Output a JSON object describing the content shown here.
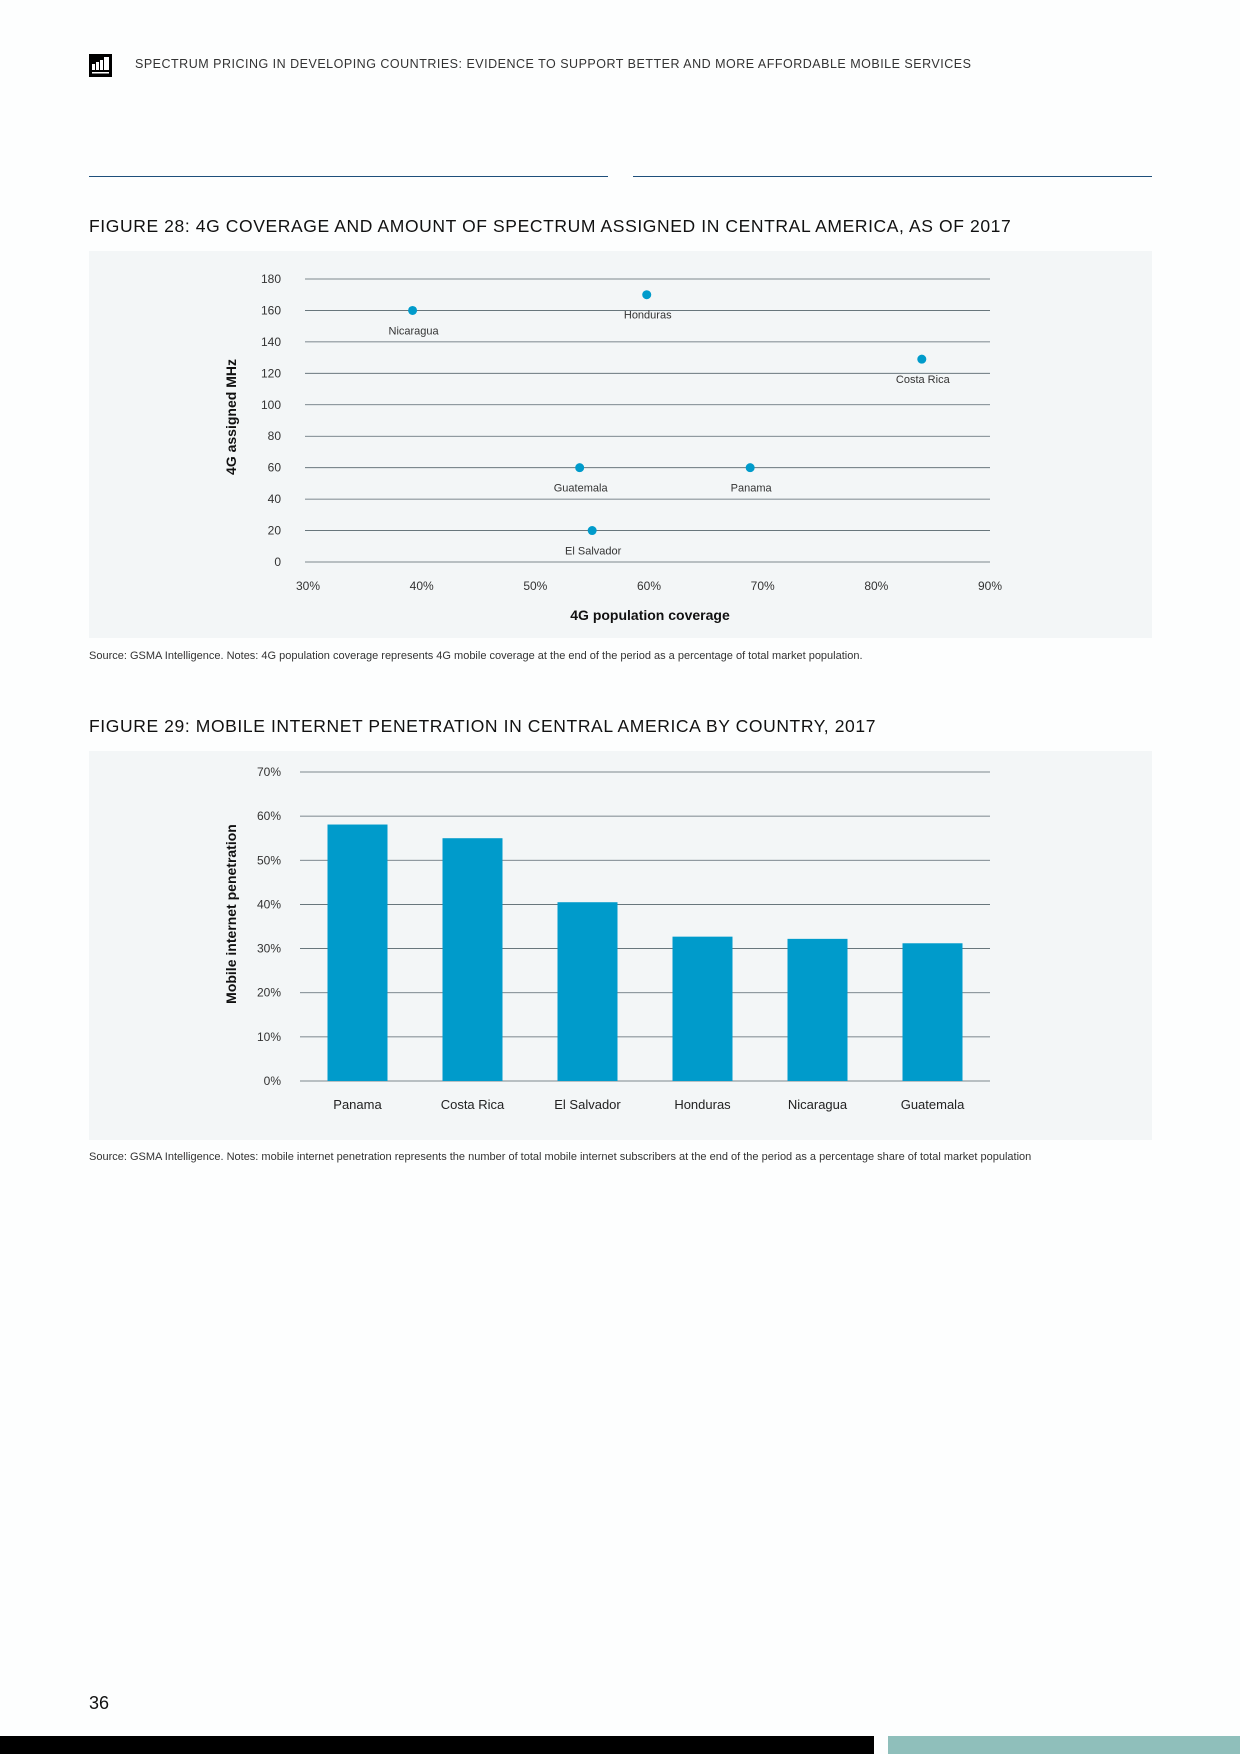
{
  "header": {
    "logo_icon": "gsma-logo-icon",
    "running_title": "SPECTRUM PRICING IN DEVELOPING COUNTRIES: EVIDENCE TO SUPPORT BETTER AND MORE AFFORDABLE MOBILE SERVICES"
  },
  "figure28": {
    "title": "FIGURE 28: 4G COVERAGE AND AMOUNT OF SPECTRUM ASSIGNED IN CENTRAL AMERICA, AS OF 2017",
    "source": "Source: GSMA Intelligence. Notes: 4G population coverage represents 4G mobile coverage at the end of the period as a percentage of total market population."
  },
  "figure29": {
    "title": "FIGURE 29: MOBILE INTERNET PENETRATION IN CENTRAL AMERICA BY COUNTRY, 2017",
    "source": "Source: GSMA Intelligence. Notes: mobile internet penetration represents the number of total mobile internet subscribers at the end of the period as a percentage share of total market population"
  },
  "page_number": "36",
  "colors": {
    "accent": "#009bcb",
    "rule": "#1e4f7b",
    "panel": "#f3f6f7"
  },
  "chart_data": [
    {
      "type": "scatter",
      "xlabel": "4G population coverage",
      "ylabel": "4G assigned MHz",
      "xlim": [
        30,
        90
      ],
      "ylim": [
        0,
        180
      ],
      "x_ticks": [
        "30%",
        "40%",
        "50%",
        "60%",
        "70%",
        "80%",
        "90%"
      ],
      "y_ticks": [
        "0",
        "20",
        "40",
        "60",
        "80",
        "100",
        "120",
        "140",
        "160",
        "180"
      ],
      "grid": true,
      "points": [
        {
          "label": "Nicaragua",
          "x": 39.2,
          "y": 160
        },
        {
          "label": "Honduras",
          "x": 59.8,
          "y": 170
        },
        {
          "label": "Costa Rica",
          "x": 84.0,
          "y": 129
        },
        {
          "label": "Guatemala",
          "x": 53.9,
          "y": 60
        },
        {
          "label": "Panama",
          "x": 68.9,
          "y": 60
        },
        {
          "label": "El Salvador",
          "x": 55.0,
          "y": 20
        }
      ]
    },
    {
      "type": "bar",
      "ylabel": "Mobile internet penetration",
      "ylim": [
        0,
        70
      ],
      "y_ticks": [
        "0%",
        "10%",
        "20%",
        "30%",
        "40%",
        "50%",
        "60%",
        "70%"
      ],
      "grid": true,
      "categories": [
        "Panama",
        "Costa Rica",
        "El Salvador",
        "Honduras",
        "Nicaragua",
        "Guatemala"
      ],
      "values": [
        58.1,
        55.0,
        40.5,
        32.7,
        32.2,
        31.2
      ]
    }
  ]
}
